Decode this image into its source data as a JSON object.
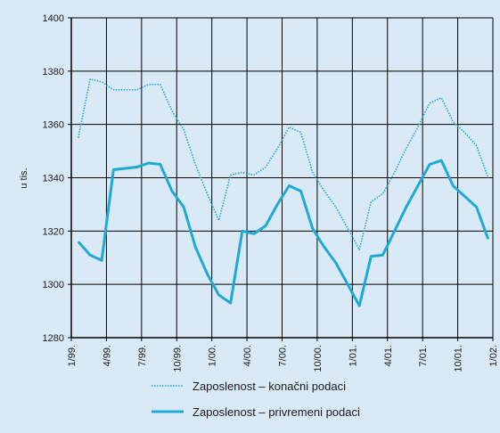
{
  "chart_data": {
    "type": "line",
    "y_label": "u tis.",
    "x": [
      0.6,
      1.6,
      2.6,
      3.6,
      4.6,
      5.6,
      6.6,
      7.6,
      8.6,
      9.6,
      10.6,
      11.6,
      12.6,
      13.6,
      14.6,
      15.6,
      16.6,
      17.6,
      18.6,
      19.6,
      20.6,
      21.6,
      22.6,
      23.6,
      24.6,
      25.6,
      26.6,
      27.6,
      28.6,
      29.6,
      30.6,
      31.6,
      32.6,
      33.6,
      34.6,
      35.6
    ],
    "xlim": [
      0,
      36
    ],
    "xticks": [
      {
        "value": 0,
        "label": "1/99."
      },
      {
        "value": 3,
        "label": "4/99."
      },
      {
        "value": 6,
        "label": "7/99."
      },
      {
        "value": 9,
        "label": "10/99."
      },
      {
        "value": 12,
        "label": "1/00."
      },
      {
        "value": 15,
        "label": "4/00."
      },
      {
        "value": 18,
        "label": "7/00."
      },
      {
        "value": 21,
        "label": "10/00."
      },
      {
        "value": 24,
        "label": "1/01."
      },
      {
        "value": 27,
        "label": "4/01."
      },
      {
        "value": 30,
        "label": "7/01."
      },
      {
        "value": 33,
        "label": "10/01."
      },
      {
        "value": 36,
        "label": "1/02."
      }
    ],
    "ylim": [
      1280,
      1400
    ],
    "yticks": [
      1280,
      1300,
      1320,
      1340,
      1360,
      1380,
      1400
    ],
    "grid": true,
    "legend": "bottom",
    "series": [
      {
        "name": "Zaposlenost – konačni podaci",
        "color": "#1fa9d6",
        "style": "dotted",
        "values": [
          1355,
          1377,
          1376,
          1373,
          1373,
          1373,
          1375,
          1375,
          1365,
          1358,
          1345,
          1334,
          1324,
          1341,
          1342,
          1341,
          1344,
          1351,
          1359,
          1357,
          1342,
          1335,
          1329,
          1321,
          1313,
          1331,
          1334,
          1342,
          1351,
          1359,
          1368,
          1370,
          1361,
          1357,
          1352,
          1340
        ]
      },
      {
        "name": "Zaposlenost – privremeni podaci",
        "color": "#1fa9d6",
        "style": "solid",
        "values": [
          1316,
          1311,
          1309,
          1343,
          1343.5,
          1344,
          1345.5,
          1345,
          1335,
          1329,
          1314,
          1304,
          1296,
          1293,
          1320,
          1319,
          1322,
          1330,
          1337,
          1335,
          1321,
          1314,
          1308,
          1300,
          1292,
          1310.5,
          1311,
          1320,
          1329,
          1337,
          1345,
          1346.5,
          1337,
          1333,
          1329,
          1317
        ]
      }
    ]
  }
}
